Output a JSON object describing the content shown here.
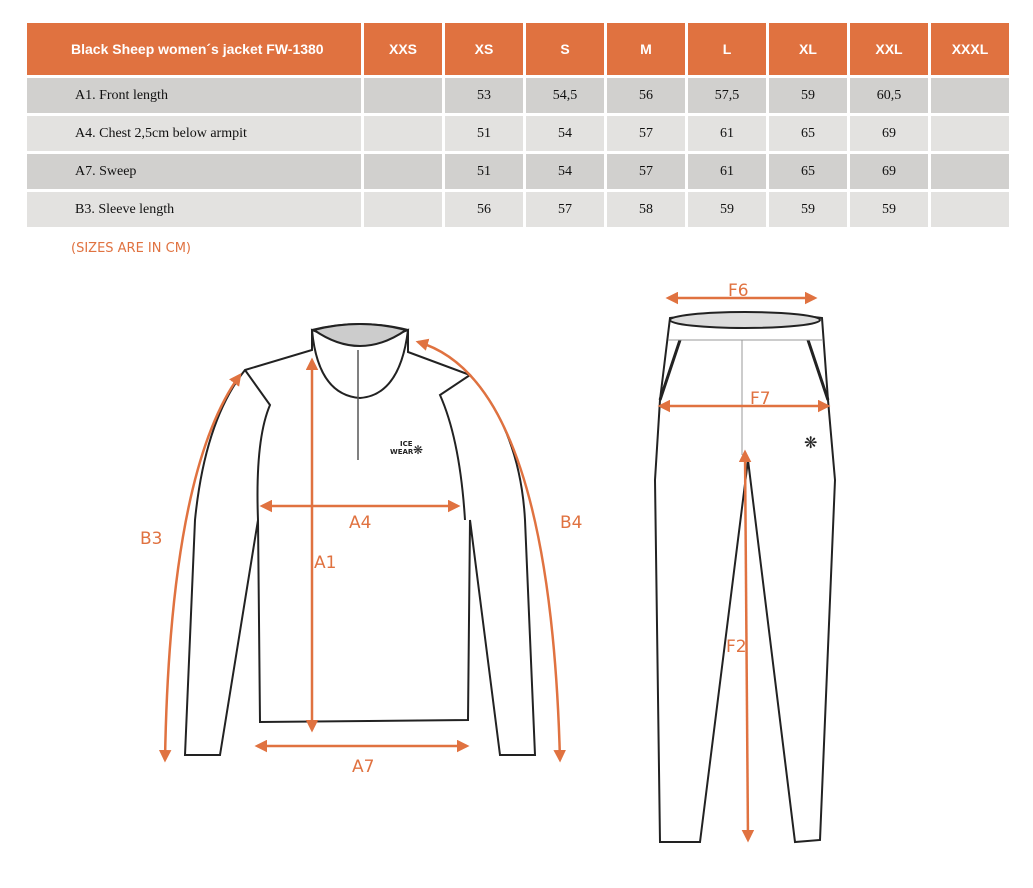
{
  "table": {
    "title": "Black Sheep women´s jacket FW-1380",
    "sizes": [
      "XXS",
      "XS",
      "S",
      "M",
      "L",
      "XL",
      "XXL",
      "XXXL"
    ],
    "rows": [
      {
        "label": "A1. Front length",
        "values": [
          "",
          "53",
          "54,5",
          "56",
          "57,5",
          "59",
          "60,5",
          ""
        ]
      },
      {
        "label": "A4. Chest 2,5cm below armpit",
        "values": [
          "",
          "51",
          "54",
          "57",
          "61",
          "65",
          "69",
          ""
        ]
      },
      {
        "label": "A7. Sweep",
        "values": [
          "",
          "51",
          "54",
          "57",
          "61",
          "65",
          "69",
          ""
        ]
      },
      {
        "label": "B3. Sleeve length",
        "values": [
          "",
          "56",
          "57",
          "58",
          "59",
          "59",
          "59",
          ""
        ]
      }
    ]
  },
  "note": "(SIZES ARE IN CM)",
  "diagram": {
    "accent": "#e07240",
    "jacket_labels": {
      "a1": "A1",
      "a4": "A4",
      "a7": "A7",
      "b3": "B3",
      "b4": "B4"
    },
    "logo": "ICE WEAR",
    "pants_labels": {
      "f2": "F2",
      "f6": "F6",
      "f7": "F7"
    }
  }
}
